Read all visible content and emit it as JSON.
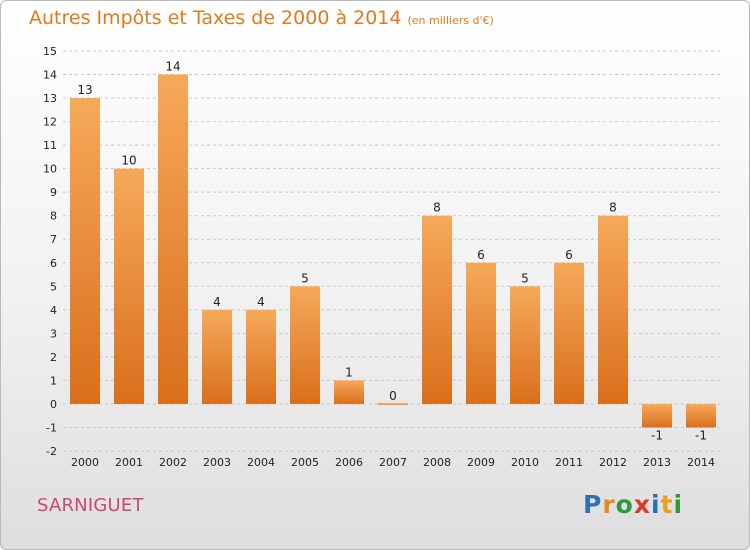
{
  "header": {
    "title": "Autres Impôts et Taxes de 2000 à 2014",
    "unit": "(en milliers d'€)"
  },
  "footer": {
    "commune": "SARNIGUET",
    "logo": {
      "text": "Proxiti",
      "letters": [
        {
          "ch": "P",
          "color": "#2f6fb5"
        },
        {
          "ch": "r",
          "color": "#e8891f"
        },
        {
          "ch": "o",
          "color": "#2f9a3a"
        },
        {
          "ch": "x",
          "color": "#d93b2b"
        },
        {
          "ch": "i",
          "color": "#2f6fb5"
        },
        {
          "ch": "t",
          "color": "#e8a21f"
        },
        {
          "ch": "i",
          "color": "#2f9a3a"
        }
      ]
    }
  },
  "colors": {
    "title": "#e07a1f",
    "commune": "#d24472",
    "bar_top": "#f6a95a",
    "bar_bottom": "#d96f1c",
    "grid": "#c9c9c9",
    "axis_text": "#222222"
  },
  "chart_data": {
    "type": "bar",
    "categories": [
      "2000",
      "2001",
      "2002",
      "2003",
      "2004",
      "2005",
      "2006",
      "2007",
      "2008",
      "2009",
      "2010",
      "2011",
      "2012",
      "2013",
      "2014"
    ],
    "values": [
      13,
      10,
      14,
      4,
      4,
      5,
      1,
      0,
      8,
      6,
      5,
      6,
      8,
      -1,
      -1
    ],
    "data_labels": [
      "13",
      "10",
      "14",
      "4",
      "4",
      "5",
      "1",
      "0",
      "8",
      "6",
      "5",
      "6",
      "8",
      "-1",
      "-1"
    ],
    "yticks": [
      -2,
      -1,
      0,
      1,
      2,
      3,
      4,
      5,
      6,
      7,
      8,
      9,
      10,
      11,
      12,
      13,
      14,
      15
    ],
    "ylim": [
      -2,
      15
    ],
    "grid": "horizontal dashed",
    "legend": "none"
  }
}
